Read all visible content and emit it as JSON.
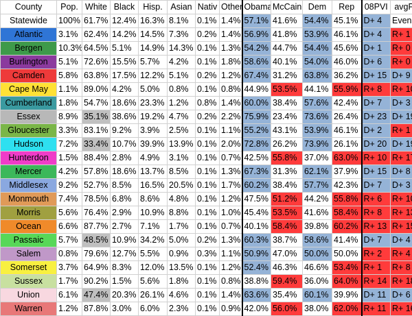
{
  "headers": [
    "County",
    "Pop.",
    "White",
    "Black",
    "Hisp.",
    "Asian",
    "Nativ",
    "Other",
    "Obama",
    "McCain",
    "Dem",
    "Rep",
    "08PVI",
    "avgPVI"
  ],
  "rows": [
    {
      "county": "Statewide",
      "cc": "#ffffff",
      "v": [
        "100%",
        "61.7%",
        "12.4%",
        "16.3%",
        "8.1%",
        "0.1%",
        "1.4%",
        "57.1%",
        "41.6%",
        "54.4%",
        "45.1%",
        "D+ 4",
        "Even"
      ],
      "c": [
        "",
        "",
        "",
        "",
        "",
        "",
        "",
        "b",
        "",
        "b",
        "",
        "b",
        ""
      ]
    },
    {
      "county": "Atlantic",
      "cc": "#2f75d6",
      "v": [
        "3.1%",
        "62.4%",
        "14.2%",
        "14.5%",
        "7.3%",
        "0.2%",
        "1.4%",
        "56.9%",
        "41.8%",
        "53.9%",
        "46.1%",
        "D+ 4",
        "R+ 1"
      ],
      "c": [
        "",
        "",
        "",
        "",
        "",
        "",
        "",
        "b",
        "",
        "b",
        "",
        "b",
        "r"
      ]
    },
    {
      "county": "Bergen",
      "cc": "#3e9a4a",
      "v": [
        "10.3%",
        "64.5%",
        "5.1%",
        "14.9%",
        "14.3%",
        "0.1%",
        "1.3%",
        "54.2%",
        "44.7%",
        "54.4%",
        "45.6%",
        "D+ 1",
        "R+ 0"
      ],
      "c": [
        "",
        "",
        "",
        "",
        "",
        "",
        "",
        "b",
        "",
        "b",
        "",
        "b",
        "r"
      ]
    },
    {
      "county": "Burlington",
      "cc": "#8b3a9e",
      "v": [
        "5.1%",
        "72.6%",
        "15.5%",
        "5.7%",
        "4.2%",
        "0.1%",
        "1.8%",
        "58.6%",
        "40.1%",
        "54.0%",
        "46.0%",
        "D+ 6",
        "R+ 0"
      ],
      "c": [
        "",
        "",
        "",
        "",
        "",
        "",
        "",
        "b",
        "",
        "b",
        "",
        "b",
        "r"
      ]
    },
    {
      "county": "Camden",
      "cc": "#ee3a3a",
      "v": [
        "5.8%",
        "63.8%",
        "17.5%",
        "12.2%",
        "5.1%",
        "0.2%",
        "1.2%",
        "67.4%",
        "31.2%",
        "63.8%",
        "36.2%",
        "D+ 15",
        "D+ 9"
      ],
      "c": [
        "",
        "",
        "",
        "",
        "",
        "",
        "",
        "b",
        "",
        "b",
        "",
        "b",
        "b"
      ]
    },
    {
      "county": "Cape May",
      "cc": "#ffe135",
      "v": [
        "1.1%",
        "89.0%",
        "4.2%",
        "5.0%",
        "0.8%",
        "0.1%",
        "0.8%",
        "44.9%",
        "53.5%",
        "44.1%",
        "55.9%",
        "R+ 8",
        "R+ 10"
      ],
      "c": [
        "",
        "",
        "",
        "",
        "",
        "",
        "",
        "",
        "r",
        "",
        "r",
        "r",
        "r"
      ]
    },
    {
      "county": "Cumberland",
      "cc": "#3a9aa0",
      "v": [
        "1.8%",
        "54.7%",
        "18.6%",
        "23.3%",
        "1.2%",
        "0.8%",
        "1.4%",
        "60.0%",
        "38.4%",
        "57.6%",
        "42.4%",
        "D+ 7",
        "D+ 3"
      ],
      "c": [
        "",
        "",
        "",
        "",
        "",
        "",
        "",
        "b",
        "",
        "b",
        "",
        "b",
        "b"
      ]
    },
    {
      "county": "Essex",
      "cc": "#b8b8b8",
      "v": [
        "8.9%",
        "35.1%",
        "38.6%",
        "19.2%",
        "4.7%",
        "0.2%",
        "2.2%",
        "75.9%",
        "23.4%",
        "73.6%",
        "26.4%",
        "D+ 23",
        "D+ 19"
      ],
      "c": [
        "",
        "g",
        "",
        "",
        "",
        "",
        "",
        "b",
        "",
        "b",
        "",
        "b",
        "b"
      ]
    },
    {
      "county": "Gloucester",
      "cc": "#7ab648",
      "v": [
        "3.3%",
        "83.1%",
        "9.2%",
        "3.9%",
        "2.5%",
        "0.1%",
        "1.1%",
        "55.2%",
        "43.1%",
        "53.9%",
        "46.1%",
        "D+ 2",
        "R+ 1"
      ],
      "c": [
        "",
        "",
        "",
        "",
        "",
        "",
        "",
        "b",
        "",
        "b",
        "",
        "b",
        "r"
      ]
    },
    {
      "county": "Hudson",
      "cc": "#2ee0f0",
      "v": [
        "7.2%",
        "33.4%",
        "10.7%",
        "39.9%",
        "13.9%",
        "0.1%",
        "2.0%",
        "72.8%",
        "26.2%",
        "73.9%",
        "26.1%",
        "D+ 20",
        "D+ 19"
      ],
      "c": [
        "",
        "g",
        "",
        "",
        "",
        "",
        "",
        "b",
        "",
        "b",
        "",
        "b",
        "b"
      ]
    },
    {
      "county": "Hunterdon",
      "cc": "#f03cc8",
      "v": [
        "1.5%",
        "88.4%",
        "2.8%",
        "4.9%",
        "3.1%",
        "0.1%",
        "0.7%",
        "42.5%",
        "55.8%",
        "37.0%",
        "63.0%",
        "R+ 10",
        "R+ 17"
      ],
      "c": [
        "",
        "",
        "",
        "",
        "",
        "",
        "",
        "",
        "r",
        "",
        "r",
        "r",
        "r"
      ]
    },
    {
      "county": "Mercer",
      "cc": "#3cb85a",
      "v": [
        "4.2%",
        "57.8%",
        "18.6%",
        "13.7%",
        "8.5%",
        "0.1%",
        "1.3%",
        "67.3%",
        "31.3%",
        "62.1%",
        "37.9%",
        "D+ 15",
        "D+ 8"
      ],
      "c": [
        "",
        "",
        "",
        "",
        "",
        "",
        "",
        "b",
        "",
        "b",
        "",
        "b",
        "b"
      ]
    },
    {
      "county": "Middlesex",
      "cc": "#8aa8e0",
      "v": [
        "9.2%",
        "52.7%",
        "8.5%",
        "16.5%",
        "20.5%",
        "0.1%",
        "1.7%",
        "60.2%",
        "38.4%",
        "57.7%",
        "42.3%",
        "D+ 7",
        "D+ 3"
      ],
      "c": [
        "",
        "",
        "",
        "",
        "",
        "",
        "",
        "b",
        "",
        "b",
        "",
        "b",
        "b"
      ]
    },
    {
      "county": "Monmouth",
      "cc": "#e09a58",
      "v": [
        "7.4%",
        "78.5%",
        "6.8%",
        "8.6%",
        "4.8%",
        "0.1%",
        "1.2%",
        "47.5%",
        "51.2%",
        "44.2%",
        "55.8%",
        "R+ 6",
        "R+ 10"
      ],
      "c": [
        "",
        "",
        "",
        "",
        "",
        "",
        "",
        "",
        "r",
        "",
        "r",
        "r",
        "r"
      ]
    },
    {
      "county": "Morris",
      "cc": "#a0a040",
      "v": [
        "5.6%",
        "76.4%",
        "2.9%",
        "10.9%",
        "8.8%",
        "0.1%",
        "1.0%",
        "45.4%",
        "53.5%",
        "41.6%",
        "58.4%",
        "R+ 8",
        "R+ 13"
      ],
      "c": [
        "",
        "",
        "",
        "",
        "",
        "",
        "",
        "",
        "r",
        "",
        "r",
        "r",
        "r"
      ]
    },
    {
      "county": "Ocean",
      "cc": "#f08a2a",
      "v": [
        "6.6%",
        "87.7%",
        "2.7%",
        "7.1%",
        "1.7%",
        "0.1%",
        "0.7%",
        "40.1%",
        "58.4%",
        "39.8%",
        "60.2%",
        "R+ 13",
        "R+ 15"
      ],
      "c": [
        "",
        "",
        "",
        "",
        "",
        "",
        "",
        "",
        "r",
        "",
        "r",
        "r",
        "r"
      ]
    },
    {
      "county": "Passaic",
      "cc": "#58d858",
      "v": [
        "5.7%",
        "48.5%",
        "10.9%",
        "34.2%",
        "5.0%",
        "0.2%",
        "1.3%",
        "60.3%",
        "38.7%",
        "58.6%",
        "41.4%",
        "D+ 7",
        "D+ 4"
      ],
      "c": [
        "",
        "g",
        "",
        "",
        "",
        "",
        "",
        "b",
        "",
        "b",
        "",
        "b",
        "b"
      ]
    },
    {
      "county": "Salem",
      "cc": "#c098c8",
      "v": [
        "0.8%",
        "79.6%",
        "12.7%",
        "5.5%",
        "0.9%",
        "0.3%",
        "1.1%",
        "50.9%",
        "47.0%",
        "50.0%",
        "50.0%",
        "R+ 2",
        "R+ 4"
      ],
      "c": [
        "",
        "",
        "",
        "",
        "",
        "",
        "",
        "b",
        "",
        "b",
        "",
        "r",
        "r"
      ]
    },
    {
      "county": "Somerset",
      "cc": "#f8f040",
      "v": [
        "3.7%",
        "64.9%",
        "8.3%",
        "12.0%",
        "13.5%",
        "0.1%",
        "1.2%",
        "52.4%",
        "46.3%",
        "46.6%",
        "53.4%",
        "R+ 1",
        "R+ 8"
      ],
      "c": [
        "",
        "",
        "",
        "",
        "",
        "",
        "",
        "b",
        "",
        "",
        "r",
        "r",
        "r"
      ]
    },
    {
      "county": "Sussex",
      "cc": "#c8e0a0",
      "v": [
        "1.7%",
        "90.2%",
        "1.5%",
        "5.6%",
        "1.8%",
        "0.1%",
        "0.8%",
        "38.8%",
        "59.4%",
        "36.0%",
        "64.0%",
        "R+ 14",
        "R+ 18"
      ],
      "c": [
        "",
        "",
        "",
        "",
        "",
        "",
        "",
        "",
        "r",
        "",
        "r",
        "r",
        "r"
      ]
    },
    {
      "county": "Union",
      "cc": "#f8d8e0",
      "v": [
        "6.1%",
        "47.4%",
        "20.3%",
        "26.1%",
        "4.6%",
        "0.1%",
        "1.4%",
        "63.6%",
        "35.4%",
        "60.1%",
        "39.9%",
        "D+ 11",
        "D+ 6"
      ],
      "c": [
        "",
        "g",
        "",
        "",
        "",
        "",
        "",
        "b",
        "",
        "b",
        "",
        "b",
        "b"
      ]
    },
    {
      "county": "Warren",
      "cc": "#e87878",
      "v": [
        "1.2%",
        "87.8%",
        "3.0%",
        "6.0%",
        "2.3%",
        "0.1%",
        "0.9%",
        "42.0%",
        "56.0%",
        "38.0%",
        "62.0%",
        "R+ 11",
        "R+ 16"
      ],
      "c": [
        "",
        "",
        "",
        "",
        "",
        "",
        "",
        "",
        "r",
        "",
        "r",
        "r",
        "r"
      ]
    }
  ]
}
